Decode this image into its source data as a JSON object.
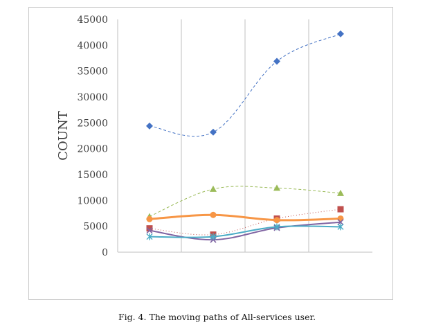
{
  "caption": "Fig. 4. The moving paths of All-services user.",
  "chart_data": {
    "type": "line",
    "ylabel": "COUNT",
    "xlabel": "",
    "title": "",
    "ylim": [
      0,
      45000
    ],
    "yticks": [
      0,
      5000,
      10000,
      15000,
      20000,
      25000,
      30000,
      35000,
      40000,
      45000
    ],
    "x": [
      1,
      2,
      3,
      4
    ],
    "grid": "vertical",
    "legend": "none",
    "series": [
      {
        "values": [
          24400,
          23200,
          36900,
          42200
        ],
        "color": "#4472c4",
        "marker": "diamond",
        "dash": "4,3",
        "width": 1
      },
      {
        "values": [
          6900,
          12200,
          12400,
          11400
        ],
        "color": "#9bbb59",
        "marker": "triangle",
        "dash": "4,3",
        "width": 1
      },
      {
        "values": [
          4600,
          3400,
          6500,
          8300
        ],
        "color": "#c0504d",
        "marker": "square",
        "dash": "1,3",
        "width": 1
      },
      {
        "values": [
          6400,
          7200,
          6200,
          6500
        ],
        "color": "#f79646",
        "marker": "circle",
        "dash": "",
        "width": 3
      },
      {
        "values": [
          4200,
          2400,
          4700,
          5800
        ],
        "color": "#8064a2",
        "marker": "x",
        "dash": "",
        "width": 2
      },
      {
        "values": [
          3000,
          3000,
          4900,
          4900
        ],
        "color": "#4bacc6",
        "marker": "star",
        "dash": "",
        "width": 2
      }
    ]
  }
}
